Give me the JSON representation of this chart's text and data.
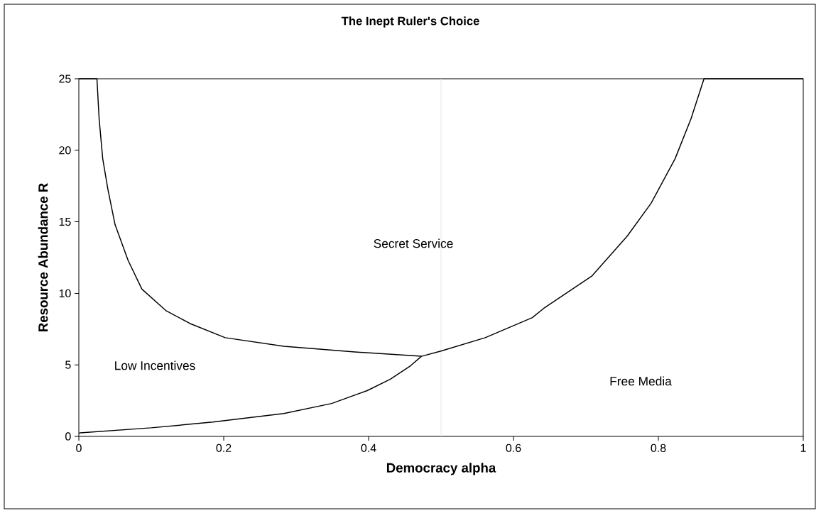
{
  "chart_data": {
    "type": "line",
    "title": "The Inept Ruler's Choice",
    "xlabel": "Democracy alpha",
    "ylabel": "Resource Abundance R",
    "xlim": [
      0,
      1
    ],
    "ylim": [
      0,
      25
    ],
    "xticks": [
      0,
      0.2,
      0.4,
      0.6,
      0.8,
      1
    ],
    "yticks": [
      0,
      5,
      10,
      15,
      20,
      25
    ],
    "grid": false,
    "marker": "none",
    "line_style": "solid",
    "series": [
      {
        "color": "#000000",
        "x": [
          0,
          0.025,
          0.028,
          0.033,
          0.04,
          0.05,
          0.068,
          0.087,
          0.12,
          0.153,
          0.202,
          0.283,
          0.381,
          0.473,
          0.499,
          0.561,
          0.626,
          0.643,
          0.708,
          0.757,
          0.79,
          0.823,
          0.845,
          0.863,
          1
        ],
        "values": [
          25,
          25,
          22.2,
          19.4,
          17.3,
          14.8,
          12.3,
          10.3,
          8.8,
          7.9,
          6.9,
          6.3,
          5.9,
          5.6,
          5.95,
          6.9,
          8.3,
          9.0,
          11.2,
          14.0,
          16.3,
          19.4,
          22.2,
          25,
          25
        ]
      },
      {
        "color": "#000000",
        "x": [
          0,
          0.002,
          0.1,
          0.185,
          0.283,
          0.349,
          0.398,
          0.43,
          0.457,
          0.473
        ],
        "values": [
          0.2,
          0.25,
          0.6,
          1.0,
          1.6,
          2.3,
          3.2,
          4.0,
          4.9,
          5.6
        ]
      }
    ],
    "ref_lines": [
      {
        "axis": "x",
        "value": 0.5,
        "color": "#e6e6e6"
      }
    ],
    "annotations": [
      "Low Incentives",
      "Secret Service",
      "Free Media"
    ]
  }
}
